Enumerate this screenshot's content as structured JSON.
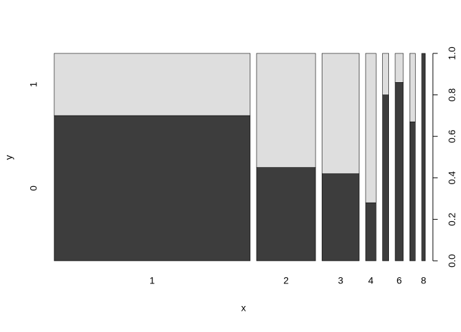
{
  "chart_data": {
    "type": "spineplot",
    "x_label": "x",
    "y_label": "y",
    "categories": [
      "1",
      "2",
      "3",
      "4",
      null,
      "6",
      null,
      "8"
    ],
    "widths": [
      0.601,
      0.181,
      0.114,
      0.032,
      0.019,
      0.025,
      0.017,
      0.011
    ],
    "series": [
      {
        "name": "0",
        "color": "#3d3d3d",
        "values": [
          0.7,
          0.45,
          0.42,
          0.28,
          0.8,
          0.86,
          0.67,
          1.0
        ]
      },
      {
        "name": "1",
        "color": "#dedede",
        "values": [
          0.3,
          0.55,
          0.58,
          0.72,
          0.2,
          0.14,
          0.33,
          0.0
        ]
      }
    ],
    "ylim": [
      0,
      1
    ],
    "yticks": [
      {
        "value": 0,
        "label": "0.0"
      },
      {
        "value": 0.2,
        "label": "0.2"
      },
      {
        "value": 0.4,
        "label": "0.4"
      },
      {
        "value": 0.6,
        "label": "0.6"
      },
      {
        "value": 0.8,
        "label": "0.8"
      },
      {
        "value": 1,
        "label": "1.0"
      }
    ]
  }
}
